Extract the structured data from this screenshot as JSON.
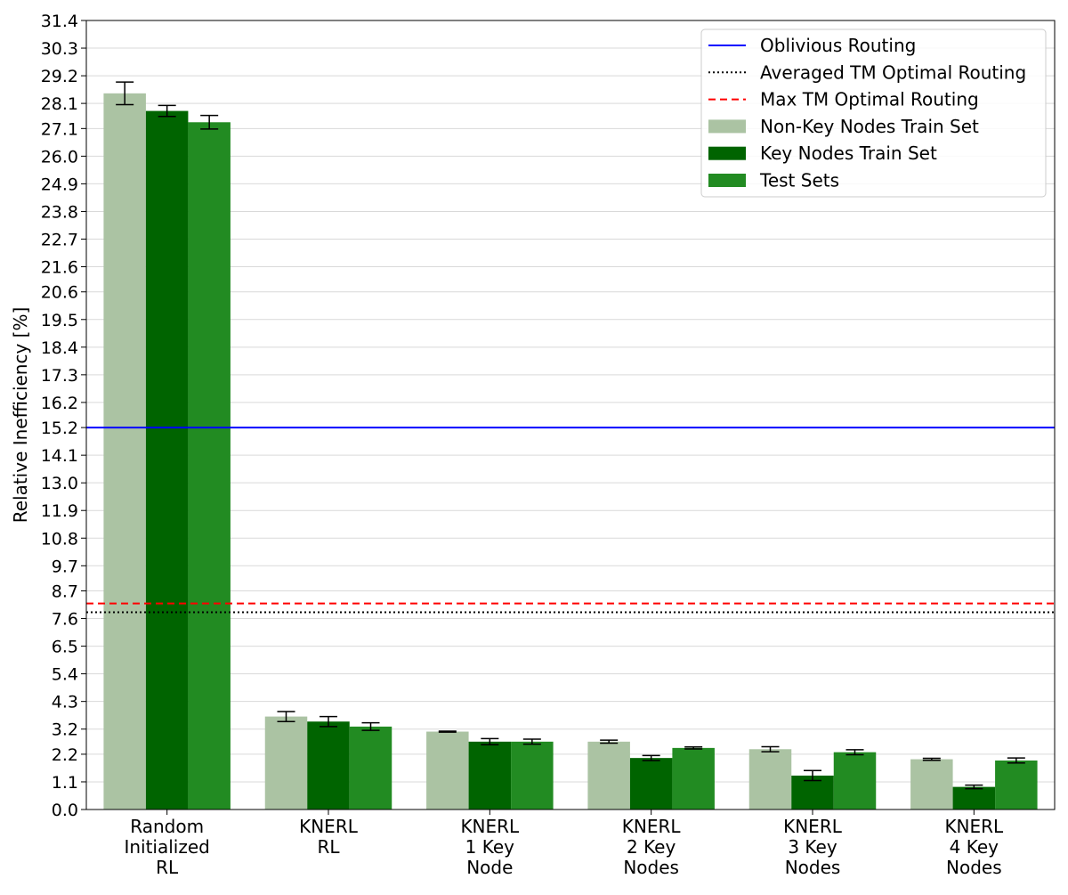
{
  "chart_data": {
    "type": "bar",
    "ylabel": "Relative Inefficiency [%]",
    "xlabel": "",
    "ylim": [
      0,
      31.4
    ],
    "yticks": [
      "0.0",
      "1.1",
      "2.2",
      "3.2",
      "4.3",
      "5.4",
      "6.5",
      "7.6",
      "8.7",
      "9.7",
      "10.8",
      "11.9",
      "13.0",
      "14.1",
      "15.2",
      "16.2",
      "17.3",
      "18.4",
      "19.5",
      "20.6",
      "21.6",
      "22.7",
      "23.8",
      "24.9",
      "26.0",
      "27.1",
      "28.1",
      "29.2",
      "30.3",
      "31.4"
    ],
    "grid": "horizontal",
    "legend_position": "top-right",
    "categories": [
      [
        "Random",
        "Initialized",
        "RL"
      ],
      [
        "KNERL",
        "RL"
      ],
      [
        "KNERL",
        "1 Key",
        "Node"
      ],
      [
        "KNERL",
        "2 Key",
        "Nodes"
      ],
      [
        "KNERL",
        "3 Key",
        "Nodes"
      ],
      [
        "KNERL",
        "4 Key",
        "Nodes"
      ]
    ],
    "series": [
      {
        "name": "Non-Key Nodes Train Set",
        "color": "#abc3a3",
        "values": [
          28.5,
          3.7,
          3.1,
          2.7,
          2.4,
          2.0
        ],
        "errors": [
          0.45,
          0.2,
          0.02,
          0.06,
          0.1,
          0.04
        ]
      },
      {
        "name": "Key Nodes Train Set",
        "color": "#006400",
        "values": [
          27.8,
          3.5,
          2.7,
          2.05,
          1.35,
          0.9
        ],
        "errors": [
          0.22,
          0.2,
          0.12,
          0.1,
          0.2,
          0.07
        ]
      },
      {
        "name": "Test Sets",
        "color": "#228b22",
        "values": [
          27.35,
          3.3,
          2.7,
          2.45,
          2.28,
          1.95
        ],
        "errors": [
          0.27,
          0.15,
          0.1,
          0.04,
          0.1,
          0.1
        ]
      }
    ],
    "reference_lines": [
      {
        "name": "Oblivious Routing",
        "value": 15.2,
        "color": "#0000ff",
        "style": "solid"
      },
      {
        "name": "Averaged TM Optimal Routing",
        "value": 7.85,
        "color": "#000000",
        "style": "dotted"
      },
      {
        "name": "Max TM Optimal Routing",
        "value": 8.2,
        "color": "#ff0000",
        "style": "dashed"
      }
    ],
    "legend_order": [
      "Oblivious Routing",
      "Averaged TM Optimal Routing",
      "Max TM Optimal Routing",
      "Non-Key Nodes Train Set",
      "Key Nodes Train Set",
      "Test Sets"
    ]
  }
}
